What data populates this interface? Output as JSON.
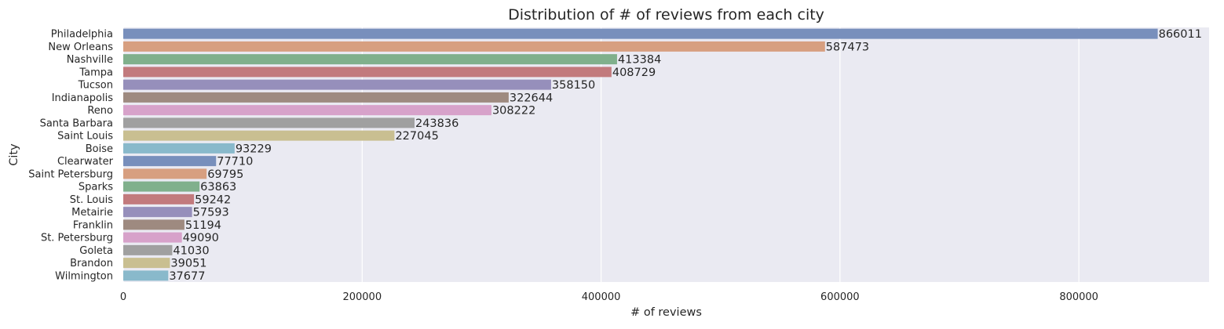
{
  "chart_data": {
    "type": "bar",
    "orientation": "horizontal",
    "title": "Distribution of # of reviews from each city",
    "xlabel": "# of reviews",
    "ylabel": "City",
    "xlim": [
      0,
      909000
    ],
    "xticks": [
      0,
      200000,
      400000,
      600000,
      800000
    ],
    "xtick_labels": [
      "0",
      "200000",
      "400000",
      "600000",
      "800000"
    ],
    "grid": "vertical",
    "categories": [
      "Philadelphia",
      "New Orleans",
      "Nashville",
      "Tampa",
      "Tucson",
      "Indianapolis",
      "Reno",
      "Santa Barbara",
      "Saint Louis",
      "Boise",
      "Clearwater",
      "Saint Petersburg",
      "Sparks",
      "St. Louis",
      "Metairie",
      "Franklin",
      "St. Petersburg",
      "Goleta",
      "Brandon",
      "Wilmington"
    ],
    "values": [
      866011,
      587473,
      413384,
      408729,
      358150,
      322644,
      308222,
      243836,
      227045,
      93229,
      77710,
      69795,
      63863,
      59242,
      57593,
      51194,
      49090,
      41030,
      39051,
      37677
    ],
    "data_labels": [
      "866011",
      "587473",
      "413384",
      "408729",
      "358150",
      "322644",
      "308222",
      "243836",
      "227045",
      "93229",
      "77710",
      "69795",
      "63863",
      "59242",
      "57593",
      "51194",
      "49090",
      "41030",
      "39051",
      "37677"
    ],
    "colors": [
      "#788fbc",
      "#d79f80",
      "#80b08c",
      "#c27a7d",
      "#968fbb",
      "#9e8a80",
      "#d7a2ca",
      "#a0a0a0",
      "#c9bf91",
      "#89b9cb",
      "#788fbc",
      "#d79f80",
      "#80b08c",
      "#c27a7d",
      "#968fbb",
      "#9e8a80",
      "#d7a2ca",
      "#a0a0a0",
      "#c9bf91",
      "#89b9cb"
    ],
    "background_color": "#eaeaf2",
    "grid_color": "#ffffff",
    "text_color": "#262626"
  }
}
